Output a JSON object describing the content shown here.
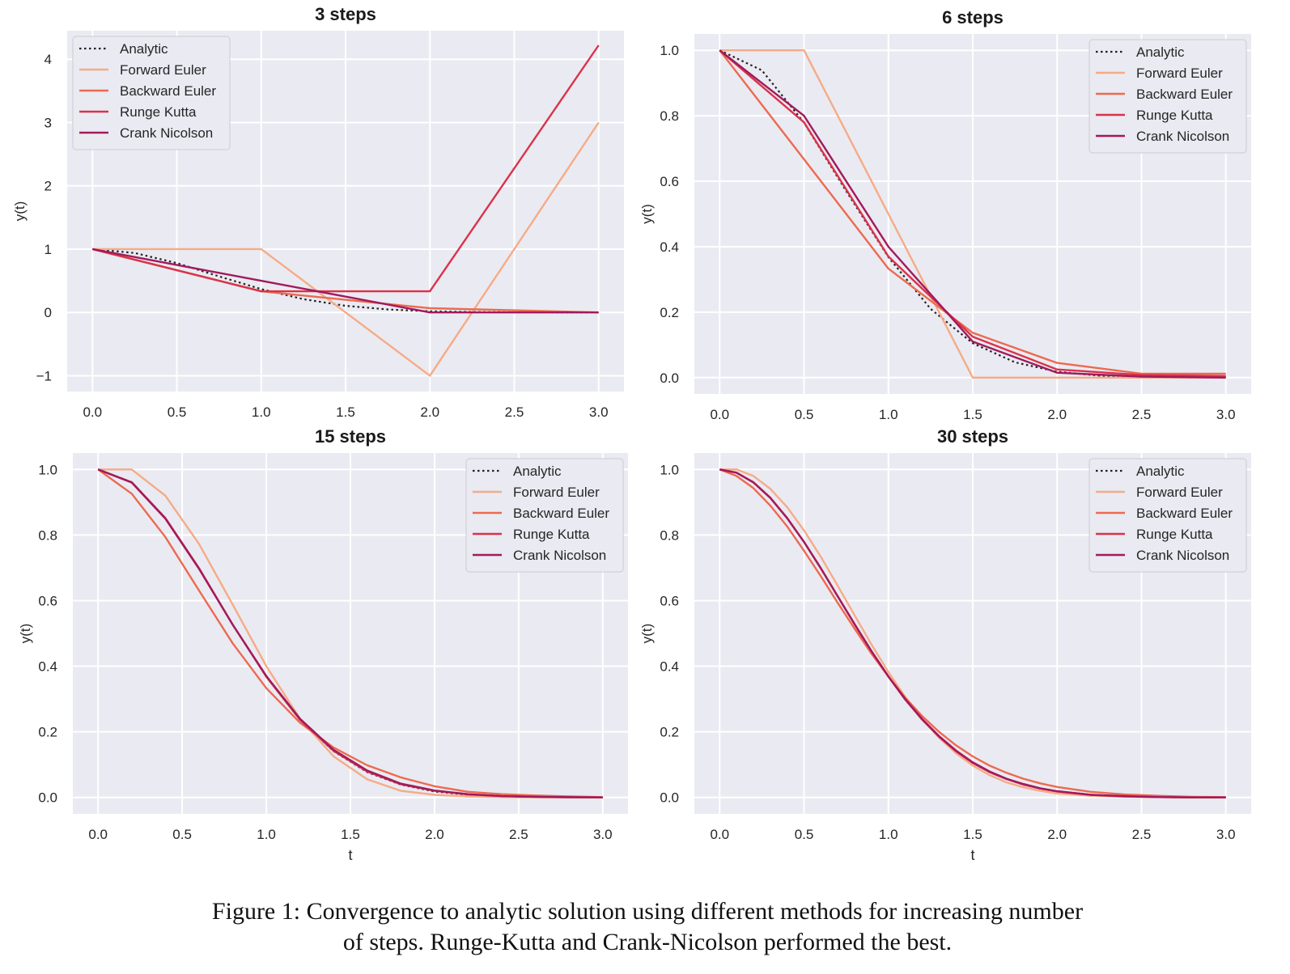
{
  "chart_data": [
    {
      "type": "line",
      "title": "3 steps",
      "xlabel": "",
      "ylabel": "y(t)",
      "xlim": [
        -0.15,
        3.15
      ],
      "ylim": [
        -1.25,
        4.45
      ],
      "xticks": [
        0.0,
        0.5,
        1.0,
        1.5,
        2.0,
        2.5,
        3.0
      ],
      "xtick_labels": [
        "0.0",
        "0.5",
        "1.0",
        "1.5",
        "2.0",
        "2.5",
        "3.0"
      ],
      "yticks": [
        -1,
        0,
        1,
        2,
        3,
        4
      ],
      "ytick_labels": [
        "−1",
        "0",
        "1",
        "2",
        "3",
        "4"
      ],
      "legend_position": "top-left",
      "grid": true,
      "series": [
        {
          "name": "Analytic",
          "color": "#222222",
          "style": "dotted",
          "x": [
            0,
            0.25,
            0.5,
            0.75,
            1.0,
            1.25,
            1.5,
            1.75,
            2.0,
            2.25,
            2.5,
            2.75,
            3.0
          ],
          "y": [
            1.0,
            0.939,
            0.779,
            0.57,
            0.368,
            0.21,
            0.105,
            0.047,
            0.018,
            0.006,
            0.002,
            0.001,
            0.0
          ]
        },
        {
          "name": "Forward Euler",
          "color": "#f6ab86",
          "style": "solid",
          "x": [
            0,
            1,
            2,
            3
          ],
          "y": [
            1,
            1,
            -1,
            3
          ]
        },
        {
          "name": "Backward Euler",
          "color": "#ec6a4f",
          "style": "solid",
          "x": [
            0,
            1,
            2,
            3
          ],
          "y": [
            1,
            0.333,
            0.067,
            0.0
          ]
        },
        {
          "name": "Runge Kutta",
          "color": "#d9334a",
          "style": "solid",
          "x": [
            0,
            1,
            2,
            3
          ],
          "y": [
            1,
            0.333,
            0.333,
            4.22
          ]
        },
        {
          "name": "Crank Nicolson",
          "color": "#a11a5b",
          "style": "solid",
          "x": [
            0,
            1,
            2,
            3
          ],
          "y": [
            1,
            0.5,
            0.0,
            0.0
          ]
        }
      ]
    },
    {
      "type": "line",
      "title": "6 steps",
      "xlabel": "",
      "ylabel": "y(t)",
      "xlim": [
        -0.15,
        3.15
      ],
      "ylim": [
        -0.05,
        1.05
      ],
      "xticks": [
        0.0,
        0.5,
        1.0,
        1.5,
        2.0,
        2.5,
        3.0
      ],
      "xtick_labels": [
        "0.0",
        "0.5",
        "1.0",
        "1.5",
        "2.0",
        "2.5",
        "3.0"
      ],
      "yticks": [
        0.0,
        0.2,
        0.4,
        0.6,
        0.8,
        1.0
      ],
      "ytick_labels": [
        "0.0",
        "0.2",
        "0.4",
        "0.6",
        "0.8",
        "1.0"
      ],
      "legend_position": "top-right",
      "grid": true,
      "series": [
        {
          "name": "Analytic",
          "color": "#222222",
          "style": "dotted",
          "x": [
            0,
            0.25,
            0.5,
            0.75,
            1.0,
            1.25,
            1.5,
            1.75,
            2.0,
            2.25,
            2.5,
            2.75,
            3.0
          ],
          "y": [
            1.0,
            0.939,
            0.779,
            0.57,
            0.368,
            0.21,
            0.105,
            0.047,
            0.018,
            0.006,
            0.002,
            0.001,
            0.0
          ]
        },
        {
          "name": "Forward Euler",
          "color": "#f6ab86",
          "style": "solid",
          "x": [
            0,
            0.5,
            1.0,
            1.5,
            2.0,
            2.5,
            3.0
          ],
          "y": [
            1,
            1,
            0.5,
            0.0,
            0.0,
            0.0,
            0.0
          ]
        },
        {
          "name": "Backward Euler",
          "color": "#ec6a4f",
          "style": "solid",
          "x": [
            0,
            0.5,
            1.0,
            1.5,
            2.0,
            2.5,
            3.0
          ],
          "y": [
            1,
            0.667,
            0.333,
            0.137,
            0.045,
            0.012,
            0.012
          ]
        },
        {
          "name": "Runge Kutta",
          "color": "#d9334a",
          "style": "solid",
          "x": [
            0,
            0.5,
            1.0,
            1.5,
            2.0,
            2.5,
            3.0
          ],
          "y": [
            1,
            0.78,
            0.37,
            0.125,
            0.025,
            0.008,
            0.005
          ]
        },
        {
          "name": "Crank Nicolson",
          "color": "#a11a5b",
          "style": "solid",
          "x": [
            0,
            0.5,
            1.0,
            1.5,
            2.0,
            2.5,
            3.0
          ],
          "y": [
            1,
            0.8,
            0.4,
            0.11,
            0.015,
            0.003,
            0.0
          ]
        }
      ]
    },
    {
      "type": "line",
      "title": "15 steps",
      "xlabel": "t",
      "ylabel": "y(t)",
      "xlim": [
        -0.15,
        3.15
      ],
      "ylim": [
        -0.05,
        1.05
      ],
      "xticks": [
        0.0,
        0.5,
        1.0,
        1.5,
        2.0,
        2.5,
        3.0
      ],
      "xtick_labels": [
        "0.0",
        "0.5",
        "1.0",
        "1.5",
        "2.0",
        "2.5",
        "3.0"
      ],
      "yticks": [
        0.0,
        0.2,
        0.4,
        0.6,
        0.8,
        1.0
      ],
      "ytick_labels": [
        "0.0",
        "0.2",
        "0.4",
        "0.6",
        "0.8",
        "1.0"
      ],
      "legend_position": "top-right",
      "grid": true,
      "series": [
        {
          "name": "Analytic",
          "color": "#222222",
          "style": "dotted",
          "x": [
            0,
            0.2,
            0.4,
            0.6,
            0.8,
            1.0,
            1.2,
            1.4,
            1.6,
            1.8,
            2.0,
            2.2,
            2.4,
            2.6,
            2.8,
            3.0
          ],
          "y": [
            1.0,
            0.961,
            0.852,
            0.698,
            0.527,
            0.368,
            0.237,
            0.141,
            0.077,
            0.039,
            0.018,
            0.008,
            0.003,
            0.001,
            0.0,
            0.0
          ]
        },
        {
          "name": "Forward Euler",
          "color": "#f6ab86",
          "style": "solid",
          "x": [
            0,
            0.2,
            0.4,
            0.6,
            0.8,
            1.0,
            1.2,
            1.4,
            1.6,
            1.8,
            2.0,
            2.2,
            2.4,
            2.6,
            2.8,
            3.0
          ],
          "y": [
            1.0,
            1.0,
            0.92,
            0.773,
            0.588,
            0.4,
            0.24,
            0.125,
            0.055,
            0.02,
            0.008,
            0.003,
            0.001,
            0.0,
            0.0,
            0.0
          ]
        },
        {
          "name": "Backward Euler",
          "color": "#ec6a4f",
          "style": "solid",
          "x": [
            0,
            0.2,
            0.4,
            0.6,
            0.8,
            1.0,
            1.2,
            1.4,
            1.6,
            1.8,
            2.0,
            2.2,
            2.4,
            2.6,
            2.8,
            3.0
          ],
          "y": [
            1.0,
            0.926,
            0.794,
            0.631,
            0.47,
            0.333,
            0.228,
            0.152,
            0.098,
            0.061,
            0.034,
            0.017,
            0.01,
            0.006,
            0.003,
            0.001
          ]
        },
        {
          "name": "Runge Kutta",
          "color": "#d9334a",
          "style": "solid",
          "x": [
            0,
            0.2,
            0.4,
            0.6,
            0.8,
            1.0,
            1.2,
            1.4,
            1.6,
            1.8,
            2.0,
            2.2,
            2.4,
            2.6,
            2.8,
            3.0
          ],
          "y": [
            1.0,
            0.961,
            0.852,
            0.699,
            0.527,
            0.368,
            0.237,
            0.142,
            0.079,
            0.04,
            0.02,
            0.009,
            0.004,
            0.002,
            0.0,
            0.0
          ]
        },
        {
          "name": "Crank Nicolson",
          "color": "#a11a5b",
          "style": "solid",
          "x": [
            0,
            0.2,
            0.4,
            0.6,
            0.8,
            1.0,
            1.2,
            1.4,
            1.6,
            1.8,
            2.0,
            2.2,
            2.4,
            2.6,
            2.8,
            3.0
          ],
          "y": [
            1.0,
            0.96,
            0.85,
            0.697,
            0.527,
            0.37,
            0.24,
            0.145,
            0.082,
            0.042,
            0.021,
            0.01,
            0.004,
            0.002,
            0.001,
            0.0
          ]
        }
      ]
    },
    {
      "type": "line",
      "title": "30 steps",
      "xlabel": "t",
      "ylabel": "y(t)",
      "xlim": [
        -0.15,
        3.15
      ],
      "ylim": [
        -0.05,
        1.05
      ],
      "xticks": [
        0.0,
        0.5,
        1.0,
        1.5,
        2.0,
        2.5,
        3.0
      ],
      "xtick_labels": [
        "0.0",
        "0.5",
        "1.0",
        "1.5",
        "2.0",
        "2.5",
        "3.0"
      ],
      "yticks": [
        0.0,
        0.2,
        0.4,
        0.6,
        0.8,
        1.0
      ],
      "ytick_labels": [
        "0.0",
        "0.2",
        "0.4",
        "0.6",
        "0.8",
        "1.0"
      ],
      "legend_position": "top-right",
      "grid": true,
      "series": [
        {
          "name": "Analytic",
          "color": "#222222",
          "style": "dotted",
          "x": [
            0,
            0.1,
            0.2,
            0.3,
            0.4,
            0.5,
            0.6,
            0.7,
            0.8,
            0.9,
            1.0,
            1.1,
            1.2,
            1.3,
            1.4,
            1.5,
            1.6,
            1.7,
            1.8,
            1.9,
            2.0,
            2.2,
            2.4,
            2.6,
            2.8,
            3.0
          ],
          "y": [
            1.0,
            0.99,
            0.961,
            0.914,
            0.852,
            0.779,
            0.698,
            0.613,
            0.527,
            0.445,
            0.368,
            0.298,
            0.237,
            0.185,
            0.141,
            0.105,
            0.077,
            0.056,
            0.039,
            0.027,
            0.018,
            0.008,
            0.003,
            0.001,
            0.0,
            0.0
          ]
        },
        {
          "name": "Forward Euler",
          "color": "#f6ab86",
          "style": "solid",
          "x": [
            0,
            0.1,
            0.2,
            0.3,
            0.4,
            0.5,
            0.6,
            0.7,
            0.8,
            0.9,
            1.0,
            1.1,
            1.2,
            1.3,
            1.4,
            1.5,
            1.6,
            1.7,
            1.8,
            1.9,
            2.0,
            2.2,
            2.4,
            2.6,
            2.8,
            3.0
          ],
          "y": [
            1.0,
            1.0,
            0.98,
            0.941,
            0.885,
            0.814,
            0.733,
            0.645,
            0.555,
            0.466,
            0.382,
            0.306,
            0.239,
            0.182,
            0.135,
            0.097,
            0.068,
            0.046,
            0.031,
            0.02,
            0.012,
            0.005,
            0.002,
            0.001,
            0.0,
            0.0
          ]
        },
        {
          "name": "Backward Euler",
          "color": "#ec6a4f",
          "style": "solid",
          "x": [
            0,
            0.1,
            0.2,
            0.3,
            0.4,
            0.5,
            0.6,
            0.7,
            0.8,
            0.9,
            1.0,
            1.1,
            1.2,
            1.3,
            1.4,
            1.5,
            1.6,
            1.7,
            1.8,
            1.9,
            2.0,
            2.2,
            2.4,
            2.6,
            2.8,
            3.0
          ],
          "y": [
            1.0,
            0.98,
            0.943,
            0.89,
            0.826,
            0.752,
            0.674,
            0.593,
            0.514,
            0.438,
            0.368,
            0.304,
            0.248,
            0.2,
            0.159,
            0.125,
            0.097,
            0.075,
            0.057,
            0.043,
            0.032,
            0.017,
            0.009,
            0.005,
            0.002,
            0.001
          ]
        },
        {
          "name": "Runge Kutta",
          "color": "#d9334a",
          "style": "solid",
          "x": [
            0,
            0.1,
            0.2,
            0.3,
            0.4,
            0.5,
            0.6,
            0.7,
            0.8,
            0.9,
            1.0,
            1.1,
            1.2,
            1.3,
            1.4,
            1.5,
            1.6,
            1.7,
            1.8,
            1.9,
            2.0,
            2.2,
            2.4,
            2.6,
            2.8,
            3.0
          ],
          "y": [
            1.0,
            0.99,
            0.961,
            0.914,
            0.852,
            0.779,
            0.698,
            0.613,
            0.527,
            0.445,
            0.368,
            0.298,
            0.237,
            0.185,
            0.141,
            0.105,
            0.077,
            0.056,
            0.039,
            0.027,
            0.018,
            0.008,
            0.003,
            0.001,
            0.0,
            0.0
          ]
        },
        {
          "name": "Crank Nicolson",
          "color": "#a11a5b",
          "style": "solid",
          "x": [
            0,
            0.1,
            0.2,
            0.3,
            0.4,
            0.5,
            0.6,
            0.7,
            0.8,
            0.9,
            1.0,
            1.1,
            1.2,
            1.3,
            1.4,
            1.5,
            1.6,
            1.7,
            1.8,
            1.9,
            2.0,
            2.2,
            2.4,
            2.6,
            2.8,
            3.0
          ],
          "y": [
            1.0,
            0.99,
            0.96,
            0.913,
            0.851,
            0.779,
            0.698,
            0.613,
            0.528,
            0.446,
            0.369,
            0.3,
            0.239,
            0.187,
            0.143,
            0.107,
            0.079,
            0.057,
            0.041,
            0.028,
            0.019,
            0.008,
            0.004,
            0.001,
            0.0,
            0.0
          ]
        }
      ]
    }
  ],
  "caption": {
    "line1": "Figure 1: Convergence to analytic solution using different methods for increasing number",
    "line2": "of steps. Runge-Kutta and Crank-Nicolson performed the best."
  }
}
